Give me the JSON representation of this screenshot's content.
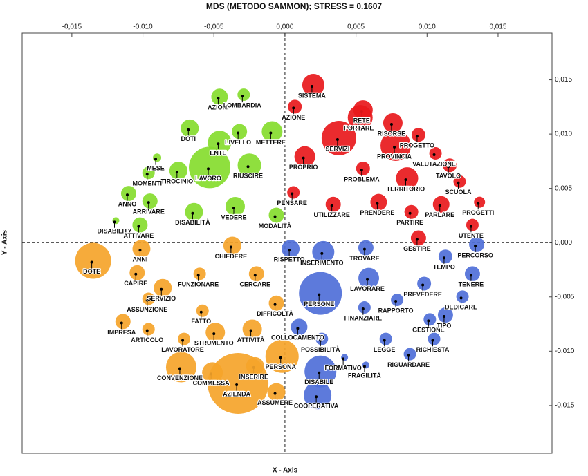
{
  "chart_data": {
    "type": "bubble",
    "title": "MDS (METODO SAMMON); STRESS = 0.1607",
    "x_label": "X - Axis",
    "y_label": "Y - Axis",
    "xlim": [
      -0.0185,
      0.0188
    ],
    "ylim": [
      -0.0194,
      0.0193
    ],
    "xticks": [
      {
        "value": -0.015,
        "label": "-0,015"
      },
      {
        "value": -0.01,
        "label": "-0,010"
      },
      {
        "value": -0.005,
        "label": "-0,005"
      },
      {
        "value": 0,
        "label": "0,000"
      },
      {
        "value": 0.005,
        "label": "0,005"
      },
      {
        "value": 0.01,
        "label": "0,010"
      },
      {
        "value": 0.015,
        "label": "0,015"
      }
    ],
    "yticks": [
      {
        "value": -0.015,
        "label": "-0,015"
      },
      {
        "value": -0.01,
        "label": "-0,010"
      },
      {
        "value": -0.005,
        "label": "-0,005"
      },
      {
        "value": 0,
        "label": "0,000"
      },
      {
        "value": 0.005,
        "label": "0,005"
      },
      {
        "value": 0.01,
        "label": "0,010"
      },
      {
        "value": 0.015,
        "label": "0,015"
      }
    ],
    "series": [
      {
        "color": "#86dc2e",
        "labels": [
          "AZIONI",
          "LOMBARDIA",
          "DOTI",
          "ENTE",
          "LIVELLO",
          "METTERE",
          "MESE",
          "MOMENTI",
          "TIROCINIO",
          "LAVORO",
          "RIUSCIRE",
          "ANNO",
          "ARRIVARE",
          "DISABILITÀ",
          "VEDERE",
          "MODALITÀ",
          "DISABILITY",
          "ATTIVARE"
        ],
        "x": [
          -0.0047,
          -0.003,
          -0.0068,
          -0.0047,
          -0.0033,
          -0.001,
          -0.0091,
          -0.0097,
          -0.0076,
          -0.0054,
          -0.0026,
          -0.0111,
          -0.0096,
          -0.0065,
          -0.0036,
          -0.0007,
          -0.012,
          -0.0103
        ],
        "values": [
          0.0133,
          0.0135,
          0.0104,
          0.0091,
          0.0101,
          0.0101,
          0.0077,
          0.0063,
          0.0065,
          0.0068,
          0.007,
          0.0044,
          0.0037,
          0.0027,
          0.0032,
          0.0024,
          0.0019,
          0.0015
        ],
        "sizes": [
          12,
          9,
          13,
          17,
          11,
          15,
          6,
          9,
          13,
          30,
          17,
          11,
          11,
          13,
          14,
          11,
          5,
          11
        ]
      },
      {
        "color": "#e8191c",
        "labels": [
          "SISTEMA",
          "AZIONE",
          "RETE",
          "PORTARE",
          "RISORSE",
          "PROGETTO",
          "SERVIZI",
          "PROVINCIA",
          "PROPRIO",
          "VALUTAZIONE",
          "TAVOLO",
          "PROBLEMA",
          "TERRITORIO",
          "SCUOLA",
          "PENSARE",
          "PROGETTI",
          "UTILIZZARE",
          "PRENDERE",
          "PARTIRE",
          "PARLARE",
          "UTENTE",
          "GESTIRE"
        ],
        "x": [
          0.0019,
          0.0006,
          0.0054,
          0.0052,
          0.0075,
          0.0093,
          0.0037,
          0.0077,
          0.0013,
          0.0105,
          0.0115,
          0.0054,
          0.0085,
          0.0122,
          0.0005,
          0.0136,
          0.0033,
          0.0065,
          0.0088,
          0.0109,
          0.0131,
          0.0093
        ],
        "values": [
          0.0144,
          0.0124,
          0.0121,
          0.0114,
          0.0109,
          0.0098,
          0.0095,
          0.0088,
          0.0078,
          0.0081,
          0.007,
          0.0067,
          0.0058,
          0.0055,
          0.0045,
          0.0036,
          0.0034,
          0.0036,
          0.0027,
          0.0034,
          0.0015,
          0.0003
        ],
        "sizes": [
          16,
          10,
          14,
          18,
          14,
          10,
          25,
          22,
          15,
          9,
          10,
          10,
          16,
          9,
          9,
          8,
          11,
          12,
          10,
          12,
          9,
          11
        ]
      },
      {
        "color": "#4f6fd8",
        "labels": [
          "RISPETTO",
          "INSERIMENTO",
          "TROVARE",
          "PERCORSO",
          "TEMPO",
          "LAVORARE",
          "TENERE",
          "PREVEDERE",
          "PERSONE",
          "DEDICARE",
          "FINANZIARE",
          "RAPPORTO",
          "GESTIONE",
          "TIPO",
          "COLLOCAMENTO",
          "POSSIBILITÀ",
          "LEGGE",
          "RICHIESTA",
          "FORMATIVO",
          "RIGUARDARE",
          "FRAGILITÀ",
          "DISABILE",
          "COOPERATIVA"
        ],
        "x": [
          0.0003,
          0.0026,
          0.0056,
          0.0134,
          0.0112,
          0.0058,
          0.0131,
          0.0097,
          0.0024,
          0.0124,
          0.0055,
          0.0078,
          0.0101,
          0.0112,
          0.0009,
          0.0025,
          0.007,
          0.0104,
          0.0041,
          0.0087,
          0.0056,
          0.0024,
          0.0022
        ],
        "values": [
          -0.0007,
          -0.001,
          -0.0006,
          -0.0003,
          -0.0014,
          -0.0034,
          -0.003,
          -0.0039,
          -0.0048,
          -0.0051,
          -0.0061,
          -0.0054,
          -0.0072,
          -0.0068,
          -0.0079,
          -0.009,
          -0.009,
          -0.009,
          -0.0107,
          -0.0104,
          -0.0114,
          -0.012,
          -0.0142
        ],
        "sizes": [
          13,
          16,
          11,
          11,
          10,
          15,
          11,
          10,
          31,
          9,
          9,
          9,
          9,
          11,
          12,
          9,
          9,
          9,
          5,
          9,
          5,
          23,
          20
        ]
      },
      {
        "color": "#f5a42a",
        "labels": [
          "DOTE",
          "ANNI",
          "CHIEDERE",
          "CAPIRE",
          "FUNZIONARE",
          "CERCARE",
          "SERVIZIO",
          "ASSUNZIONE",
          "DIFFICOLTÀ",
          "FATTO",
          "IMPRESA",
          "ARTICOLO",
          "STRUMENTO",
          "ATTIVITÀ",
          "LAVORATORE",
          "PERSONA",
          "CONVENZIONE",
          "INSERIRE",
          "COMMESSA",
          "AZIENDA",
          "ASSUMERE"
        ],
        "x": [
          -0.0136,
          -0.0102,
          -0.0038,
          -0.0105,
          -0.0061,
          -0.0021,
          -0.0087,
          -0.0097,
          -0.0007,
          -0.0059,
          -0.0115,
          -0.0097,
          -0.005,
          -0.0024,
          -0.0072,
          -0.0003,
          -0.0074,
          -0.0022,
          -0.0052,
          -0.0034,
          -0.0007
        ],
        "values": [
          -0.0018,
          -0.0007,
          -0.0004,
          -0.0029,
          -0.003,
          -0.003,
          -0.0043,
          -0.0053,
          -0.0057,
          -0.0064,
          -0.0074,
          -0.0081,
          -0.0084,
          -0.0081,
          -0.009,
          -0.0106,
          -0.0116,
          -0.0115,
          -0.0121,
          -0.0131,
          -0.0139
        ],
        "sizes": [
          26,
          13,
          13,
          11,
          9,
          11,
          13,
          9,
          11,
          9,
          11,
          9,
          14,
          14,
          9,
          24,
          22,
          13,
          15,
          44,
          13
        ]
      }
    ]
  }
}
